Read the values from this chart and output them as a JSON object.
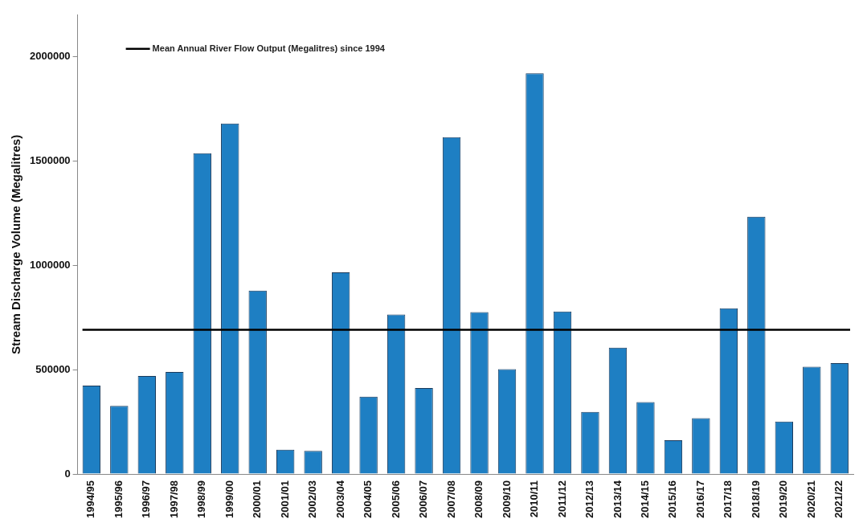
{
  "chart_data": {
    "type": "bar",
    "ylabel": "Stream Discharge Volume (Megalitres)",
    "categories": [
      "1994/95",
      "1995/96",
      "1996/97",
      "1997/98",
      "1998/99",
      "1999/00",
      "2000/01",
      "2001/01",
      "2002/03",
      "2003/04",
      "2004/05",
      "2005/06",
      "2006/07",
      "2007/08",
      "2008/09",
      "2009/10",
      "2010/11",
      "2011/12",
      "2012/13",
      "2013/14",
      "2014/15",
      "2015/16",
      "2016/17",
      "2017/18",
      "2018/19",
      "2019/20",
      "2020/21",
      "2021/22"
    ],
    "values": [
      424000,
      326000,
      470000,
      489000,
      1538000,
      1680000,
      879000,
      117000,
      111000,
      967000,
      371000,
      765000,
      412000,
      1615000,
      776000,
      503000,
      1921000,
      779000,
      298000,
      606000,
      345000,
      162000,
      268000,
      794000,
      1233000,
      251000,
      514000,
      532000
    ],
    "color": "#1e7fc3",
    "ylim": [
      0,
      2200000
    ],
    "yticks": [
      0,
      500000,
      1000000,
      1500000,
      2000000
    ],
    "grid": false,
    "ref_lines": [
      {
        "axis": "y",
        "value": 691000,
        "label": "Mean Annual River Flow Output (Megalitres) since 1994",
        "color": "#000000"
      }
    ]
  }
}
